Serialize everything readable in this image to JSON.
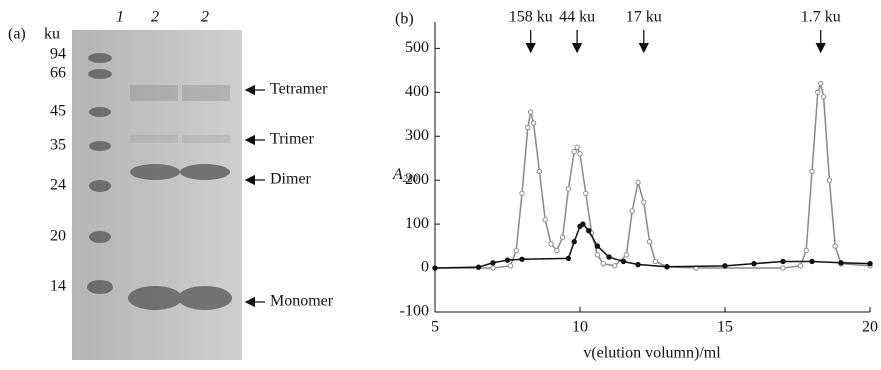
{
  "panel_a": {
    "label": "(a)",
    "unit": "ku",
    "markers": [
      "94",
      "66",
      "45",
      "35",
      "24",
      "20",
      "14"
    ],
    "lanes": [
      "1",
      "2",
      "2"
    ],
    "bands": [
      "Tetramer",
      "Trimer",
      "Dimer",
      "Monomer"
    ]
  },
  "chart_data": {
    "type": "line",
    "label": "(b)",
    "y_label": "A",
    "y_label_sub": "280",
    "x_label": "v(elution volumn)/ml",
    "xlim": [
      5,
      20
    ],
    "xticks": [
      5,
      10,
      15,
      20
    ],
    "ylim": [
      -100,
      560
    ],
    "yticks": [
      -100,
      0,
      100,
      200,
      300,
      400,
      500
    ],
    "annotations": [
      {
        "text": "158 ku",
        "x": 8.3
      },
      {
        "text": "44 ku",
        "x": 9.9
      },
      {
        "text": "17 ku",
        "x": 12.2
      },
      {
        "text": "1.7 ku",
        "x": 18.3
      }
    ],
    "series": [
      {
        "marker": "open",
        "color": "#8a8a8a",
        "x": [
          5,
          7,
          7.6,
          7.8,
          8.0,
          8.2,
          8.3,
          8.4,
          8.6,
          8.8,
          9.0,
          9.2,
          9.4,
          9.6,
          9.8,
          9.9,
          10.0,
          10.2,
          10.4,
          10.6,
          10.8,
          11.2,
          11.6,
          11.8,
          12.0,
          12.2,
          12.4,
          12.6,
          13,
          14,
          17,
          17.6,
          17.8,
          18.0,
          18.2,
          18.3,
          18.4,
          18.6,
          18.8,
          19.0,
          20
        ],
        "values": [
          0,
          0,
          5,
          40,
          170,
          320,
          355,
          330,
          220,
          110,
          55,
          40,
          70,
          180,
          265,
          275,
          260,
          170,
          80,
          30,
          10,
          5,
          30,
          130,
          195,
          150,
          60,
          15,
          3,
          0,
          0,
          5,
          40,
          220,
          400,
          420,
          390,
          200,
          50,
          10,
          5
        ]
      },
      {
        "marker": "filled",
        "color": "#111111",
        "x": [
          5,
          6.5,
          7,
          7.5,
          8,
          9.6,
          9.8,
          10.0,
          10.1,
          10.3,
          10.6,
          11,
          11.5,
          12,
          13,
          15,
          16,
          17,
          18,
          19,
          20
        ],
        "values": [
          0,
          2,
          12,
          18,
          20,
          22,
          60,
          95,
          100,
          85,
          50,
          25,
          15,
          8,
          3,
          5,
          10,
          15,
          15,
          12,
          10
        ]
      }
    ]
  }
}
